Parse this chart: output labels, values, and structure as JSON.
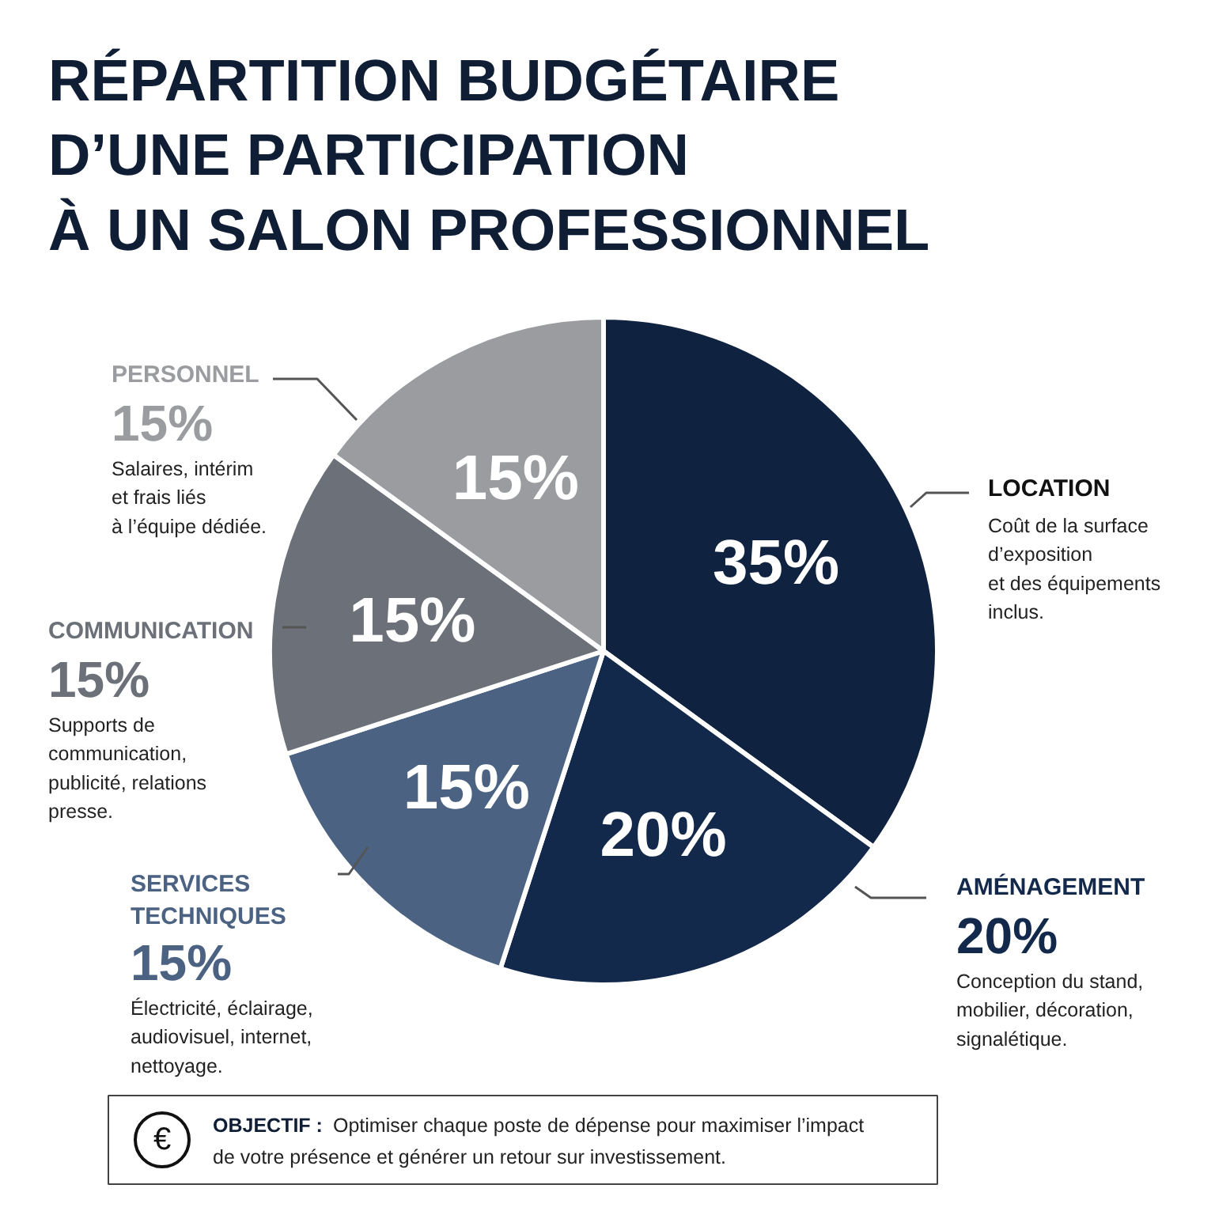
{
  "chart_data": {
    "type": "pie",
    "title": "RÉPARTITION BUDGÉTAIRE\nD’UNE PARTICIPATION\nÀ UN SALON PROFESSIONNEL",
    "categories": [
      "LOCATION",
      "AMÉNAGEMENT",
      "SERVICES\nTECHNIQUES",
      "COMMUNICATION",
      "PERSONNEL"
    ],
    "values": [
      35,
      20,
      15,
      15,
      15
    ],
    "colors": [
      "#0f2340",
      "#13294b",
      "#4b6283",
      "#6b7079",
      "#9a9ca0"
    ],
    "value_labels": [
      "35%",
      "20%",
      "15%",
      "15%",
      "15%"
    ],
    "annotations": [
      {
        "text": "Coût de la surface\nd’exposition\net des équipements\ninclus.",
        "x": "LOCATION"
      },
      {
        "text": "20%",
        "x": "AMÉNAGEMENT"
      },
      {
        "text": "Conception du stand,\nmobilier, décoration,\nsignalétique.",
        "x": "AMÉNAGEMENT"
      },
      {
        "text": "15%",
        "x": "SERVICES\nTECHNIQUES"
      },
      {
        "text": "Électricité, éclairage,\naudiovisuel, internet,\nnettoyage.",
        "x": "SERVICES\nTECHNIQUES"
      },
      {
        "text": "15%",
        "x": "COMMUNICATION"
      },
      {
        "text": "Supports de\ncommunication,\npublicité, relations\npresse.",
        "x": "COMMUNICATION"
      },
      {
        "text": "15%",
        "x": "PERSONNEL"
      },
      {
        "text": "Salaires, intérim\net frais liés\nà l’équipe dédiée.",
        "x": "PERSONNEL"
      },
      "€",
      "OBJECTIF : Optimiser chaque poste de dépense pour maximiser l’impact\nde votre présence et générer un retour sur investissement."
    ]
  }
}
